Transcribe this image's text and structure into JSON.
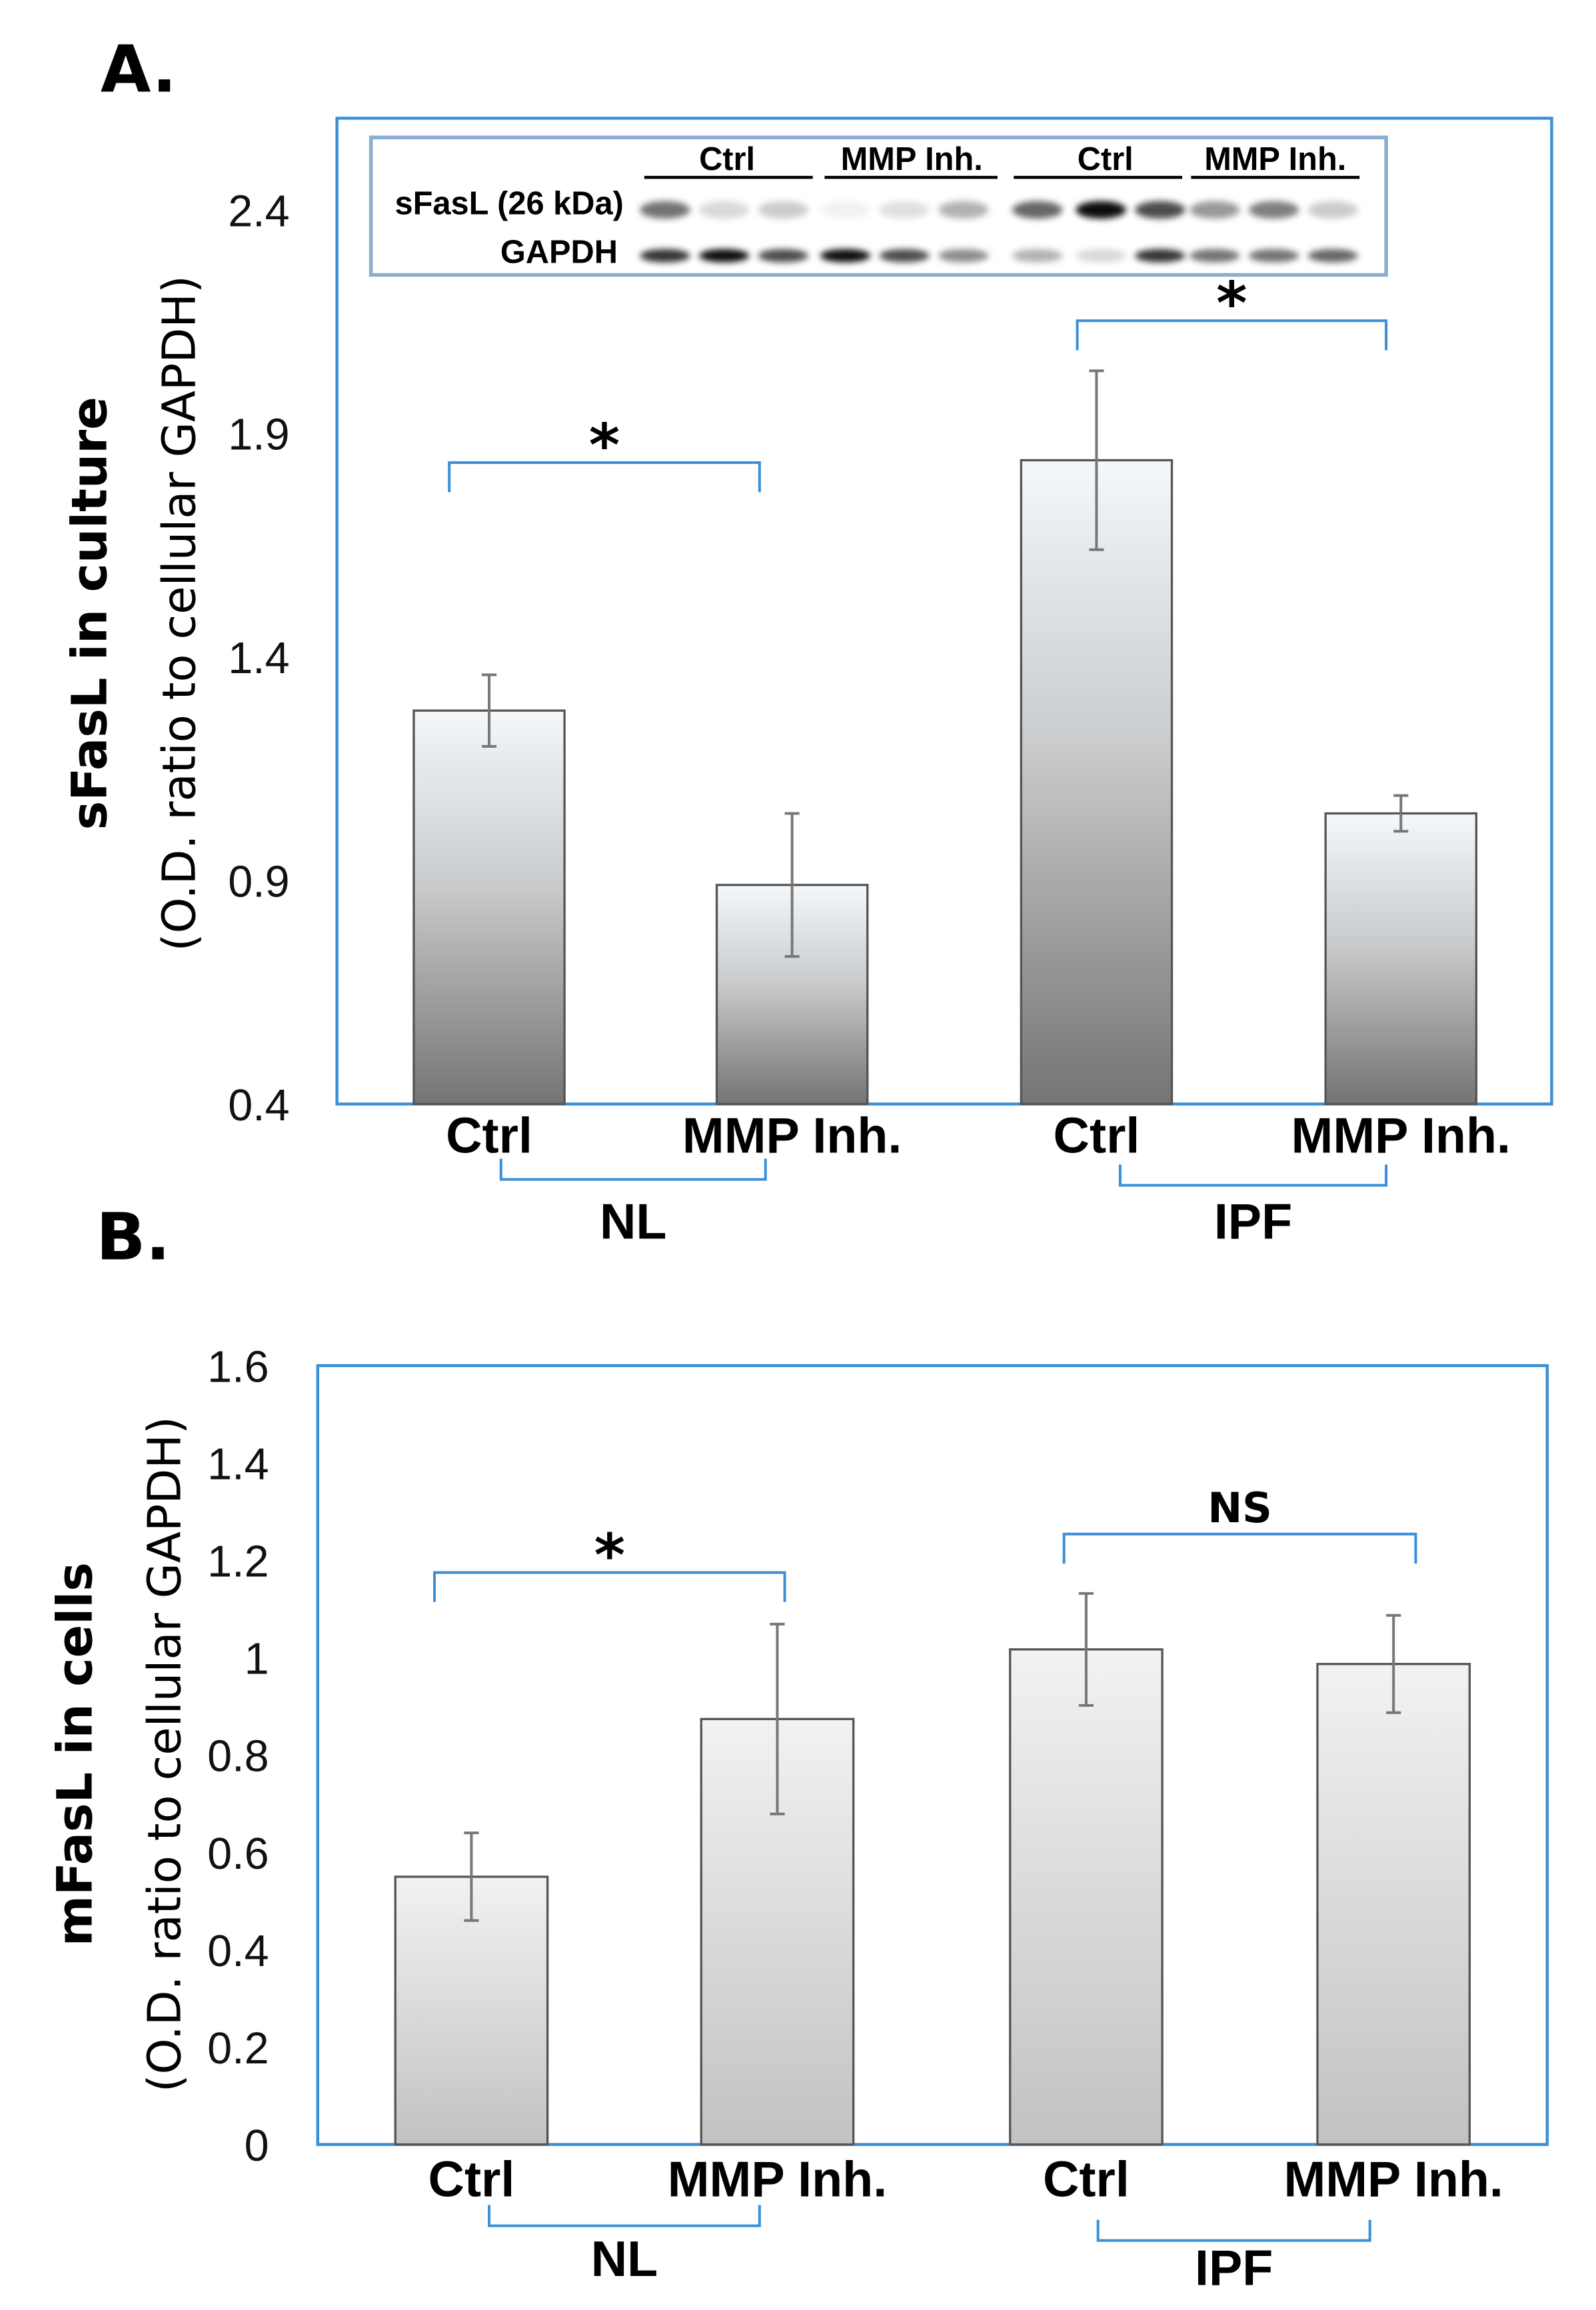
{
  "colors": {
    "frame": "#3a8fd6",
    "bracket": "#3a8fd6",
    "bar_edge": "#555555",
    "errbar": "#777777"
  },
  "chart_data": [
    {
      "panel": "A.",
      "type": "bar",
      "ylabel_main": "sFasL in culture",
      "ylabel_sub": "(O.D. ratio to cellular GAPDH)",
      "ylim": [
        0.4,
        2.4
      ],
      "yticks": [
        "0.4",
        "0.9",
        "1.4",
        "1.9",
        "2.4"
      ],
      "ytick_values": [
        0.4,
        0.9,
        1.4,
        1.9,
        2.4
      ],
      "categories": [
        "Ctrl",
        "MMP Inh.",
        "Ctrl",
        "MMP Inh."
      ],
      "groups": [
        "NL",
        "IPF"
      ],
      "values": [
        1.28,
        0.89,
        1.84,
        1.05
      ],
      "errors": [
        0.08,
        0.16,
        0.2,
        0.04
      ],
      "significance": [
        "*",
        "*"
      ],
      "blot": {
        "header": [
          "Ctrl",
          "MMP Inh.",
          "Ctrl",
          "MMP Inh."
        ],
        "rows": [
          {
            "label": "sFasL (26 kDa)",
            "intensity": [
              0.55,
              0.15,
              0.2,
              0.05,
              0.12,
              0.3,
              0.6,
              0.95,
              0.7,
              0.4,
              0.5,
              0.2
            ]
          },
          {
            "label": "GAPDH",
            "intensity": [
              0.8,
              0.95,
              0.7,
              0.95,
              0.7,
              0.45,
              0.3,
              0.15,
              0.8,
              0.55,
              0.55,
              0.6
            ]
          }
        ]
      }
    },
    {
      "panel": "B.",
      "type": "bar",
      "ylabel_main": "mFasL in cells",
      "ylabel_sub": "(O.D. ratio to cellular GAPDH)",
      "ylim": [
        0,
        1.6
      ],
      "yticks": [
        "0",
        "0.2",
        "0.4",
        "0.6",
        "0.8",
        "1",
        "1.2",
        "1.4",
        "1.6"
      ],
      "ytick_values": [
        0,
        0.2,
        0.4,
        0.6,
        0.8,
        1,
        1.2,
        1.4,
        1.6
      ],
      "categories": [
        "Ctrl",
        "MMP Inh.",
        "Ctrl",
        "MMP Inh."
      ],
      "groups": [
        "NL",
        "IPF"
      ],
      "values": [
        0.55,
        0.874,
        1.017,
        0.987
      ],
      "errors": [
        0.09,
        0.195,
        0.115,
        0.1
      ],
      "significance": [
        "*",
        "NS"
      ]
    }
  ]
}
